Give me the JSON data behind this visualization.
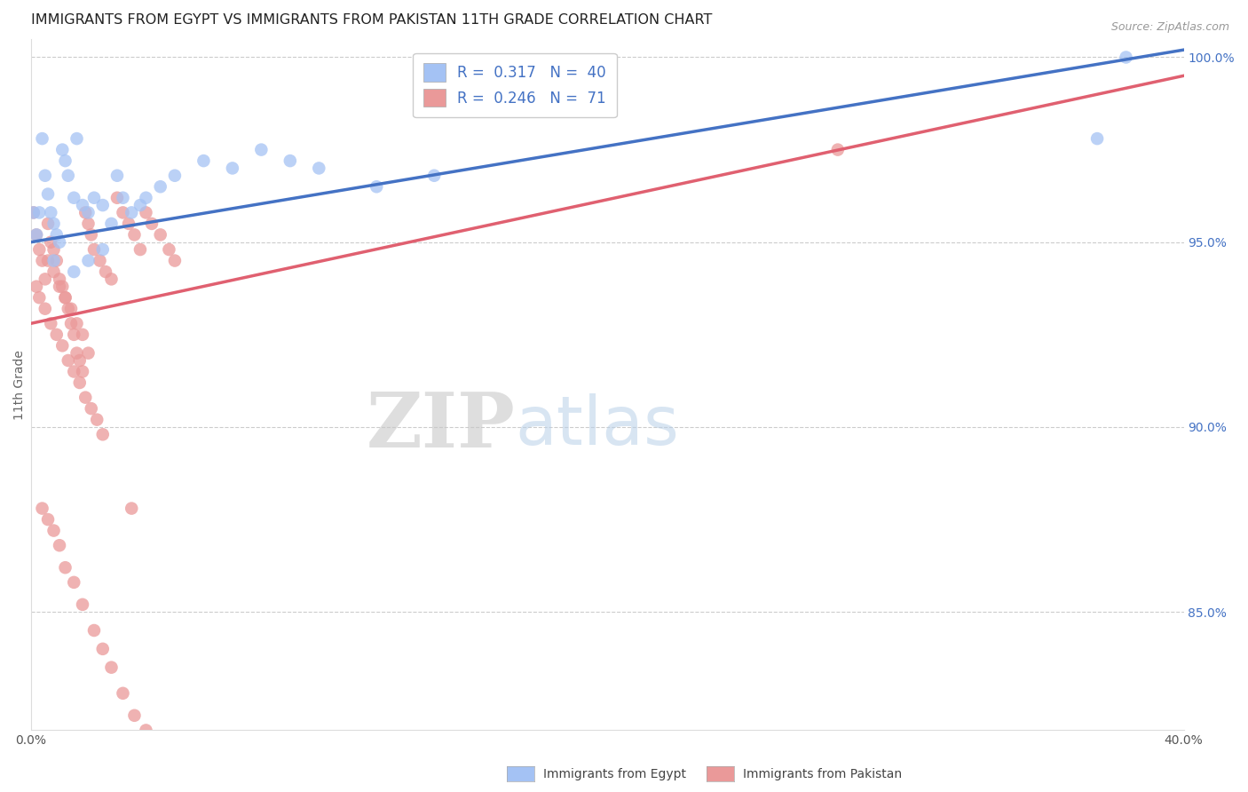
{
  "title": "IMMIGRANTS FROM EGYPT VS IMMIGRANTS FROM PAKISTAN 11TH GRADE CORRELATION CHART",
  "source": "Source: ZipAtlas.com",
  "ylabel": "11th Grade",
  "xlim": [
    0.0,
    0.4
  ],
  "ylim": [
    0.818,
    1.005
  ],
  "xticks": [
    0.0,
    0.05,
    0.1,
    0.15,
    0.2,
    0.25,
    0.3,
    0.35,
    0.4
  ],
  "xticklabels": [
    "0.0%",
    "",
    "",
    "",
    "",
    "",
    "",
    "",
    "40.0%"
  ],
  "yticks": [
    0.85,
    0.9,
    0.95,
    1.0
  ],
  "yticklabels": [
    "85.0%",
    "90.0%",
    "95.0%",
    "100.0%"
  ],
  "egypt_color": "#a4c2f4",
  "pakistan_color": "#ea9999",
  "egypt_line_color": "#4472c4",
  "pakistan_line_color": "#e06070",
  "egypt_R": 0.317,
  "egypt_N": 40,
  "pakistan_R": 0.246,
  "pakistan_N": 71,
  "legend_egypt_label": "R =  0.317   N =  40",
  "legend_pakistan_label": "R =  0.246   N =  71",
  "bottom_legend_egypt": "Immigrants from Egypt",
  "bottom_legend_pakistan": "Immigrants from Pakistan",
  "watermark_zip": "ZIP",
  "watermark_atlas": "atlas",
  "egypt_line_x0": 0.0,
  "egypt_line_y0": 0.95,
  "egypt_line_x1": 0.4,
  "egypt_line_y1": 1.002,
  "pakistan_line_x0": 0.0,
  "pakistan_line_y0": 0.928,
  "pakistan_line_x1": 0.4,
  "pakistan_line_y1": 0.995,
  "background_color": "#ffffff",
  "grid_color": "#cccccc",
  "axis_label_color": "#4472c4",
  "title_color": "#222222",
  "title_fontsize": 11.5,
  "tick_fontsize": 10,
  "ylabel_fontsize": 10,
  "egypt_scatter_x": [
    0.001,
    0.002,
    0.003,
    0.004,
    0.005,
    0.006,
    0.007,
    0.008,
    0.009,
    0.01,
    0.011,
    0.012,
    0.013,
    0.015,
    0.016,
    0.018,
    0.02,
    0.022,
    0.025,
    0.028,
    0.03,
    0.032,
    0.035,
    0.038,
    0.04,
    0.045,
    0.05,
    0.06,
    0.07,
    0.08,
    0.09,
    0.1,
    0.12,
    0.14,
    0.02,
    0.025,
    0.015,
    0.008,
    0.38,
    0.37
  ],
  "egypt_scatter_y": [
    0.958,
    0.952,
    0.958,
    0.978,
    0.968,
    0.963,
    0.958,
    0.955,
    0.952,
    0.95,
    0.975,
    0.972,
    0.968,
    0.962,
    0.978,
    0.96,
    0.958,
    0.962,
    0.96,
    0.955,
    0.968,
    0.962,
    0.958,
    0.96,
    0.962,
    0.965,
    0.968,
    0.972,
    0.97,
    0.975,
    0.972,
    0.97,
    0.965,
    0.968,
    0.945,
    0.948,
    0.942,
    0.945,
    1.0,
    0.978
  ],
  "pakistan_scatter_x": [
    0.001,
    0.002,
    0.003,
    0.004,
    0.005,
    0.006,
    0.007,
    0.008,
    0.009,
    0.01,
    0.011,
    0.012,
    0.013,
    0.014,
    0.015,
    0.016,
    0.017,
    0.018,
    0.019,
    0.02,
    0.021,
    0.022,
    0.024,
    0.026,
    0.028,
    0.03,
    0.032,
    0.034,
    0.036,
    0.038,
    0.04,
    0.042,
    0.045,
    0.048,
    0.05,
    0.002,
    0.003,
    0.005,
    0.007,
    0.009,
    0.011,
    0.013,
    0.015,
    0.017,
    0.019,
    0.021,
    0.023,
    0.025,
    0.006,
    0.008,
    0.01,
    0.012,
    0.014,
    0.016,
    0.018,
    0.02,
    0.004,
    0.006,
    0.008,
    0.01,
    0.012,
    0.015,
    0.018,
    0.022,
    0.025,
    0.028,
    0.032,
    0.036,
    0.04,
    0.28,
    0.035
  ],
  "pakistan_scatter_y": [
    0.958,
    0.952,
    0.948,
    0.945,
    0.94,
    0.955,
    0.95,
    0.948,
    0.945,
    0.94,
    0.938,
    0.935,
    0.932,
    0.928,
    0.925,
    0.92,
    0.918,
    0.915,
    0.958,
    0.955,
    0.952,
    0.948,
    0.945,
    0.942,
    0.94,
    0.962,
    0.958,
    0.955,
    0.952,
    0.948,
    0.958,
    0.955,
    0.952,
    0.948,
    0.945,
    0.938,
    0.935,
    0.932,
    0.928,
    0.925,
    0.922,
    0.918,
    0.915,
    0.912,
    0.908,
    0.905,
    0.902,
    0.898,
    0.945,
    0.942,
    0.938,
    0.935,
    0.932,
    0.928,
    0.925,
    0.92,
    0.878,
    0.875,
    0.872,
    0.868,
    0.862,
    0.858,
    0.852,
    0.845,
    0.84,
    0.835,
    0.828,
    0.822,
    0.818,
    0.975,
    0.878
  ]
}
